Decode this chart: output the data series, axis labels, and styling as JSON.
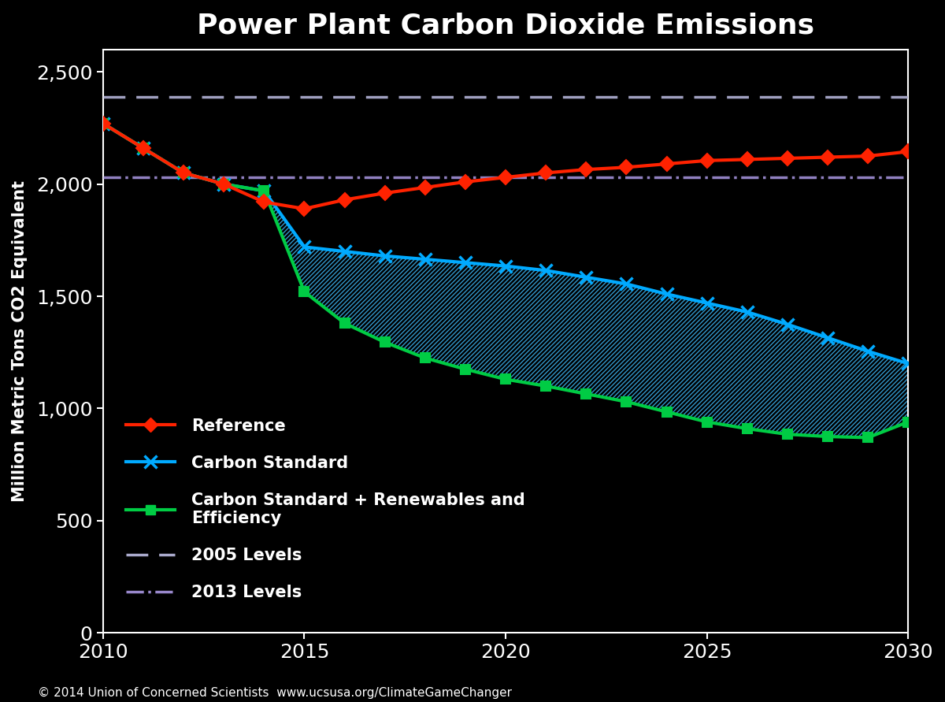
{
  "title": "Power Plant Carbon Dioxide Emissions",
  "ylabel": "Million Metric Tons CO2 Equivalent",
  "background_color": "#000000",
  "plot_bg_color": "#000000",
  "text_color": "#ffffff",
  "title_fontsize": 26,
  "label_fontsize": 15,
  "tick_fontsize": 18,
  "footnote": "© 2014 Union of Concerned Scientists  www.ucsusa.org/ClimateGameChanger",
  "years": [
    2010,
    2011,
    2012,
    2013,
    2014,
    2015,
    2016,
    2017,
    2018,
    2019,
    2020,
    2021,
    2022,
    2023,
    2024,
    2025,
    2026,
    2027,
    2028,
    2029,
    2030
  ],
  "reference": [
    2270,
    2160,
    2050,
    2000,
    1920,
    1890,
    1930,
    1960,
    1985,
    2010,
    2030,
    2050,
    2065,
    2075,
    2090,
    2105,
    2110,
    2115,
    2120,
    2125,
    2145
  ],
  "carbon_standard": [
    2270,
    2160,
    2050,
    2000,
    1970,
    1720,
    1700,
    1680,
    1665,
    1650,
    1635,
    1615,
    1585,
    1555,
    1510,
    1470,
    1430,
    1375,
    1315,
    1255,
    1200
  ],
  "carbon_standard_renewables": [
    2270,
    2160,
    2050,
    2000,
    1970,
    1520,
    1380,
    1295,
    1225,
    1175,
    1130,
    1100,
    1065,
    1030,
    985,
    940,
    910,
    885,
    875,
    870,
    940
  ],
  "level_2005": 2390,
  "level_2013": 2030,
  "reference_color": "#ff2200",
  "carbon_standard_color": "#00aaff",
  "renewables_color": "#00cc44",
  "level_2005_color": "#aaaacc",
  "level_2013_color": "#9988cc",
  "hatch_color": "#3399cc",
  "ylim": [
    0,
    2600
  ],
  "xlim": [
    2010,
    2030
  ],
  "yticks": [
    0,
    500,
    1000,
    1500,
    2000,
    2500
  ],
  "xticks": [
    2010,
    2015,
    2020,
    2025,
    2030
  ]
}
